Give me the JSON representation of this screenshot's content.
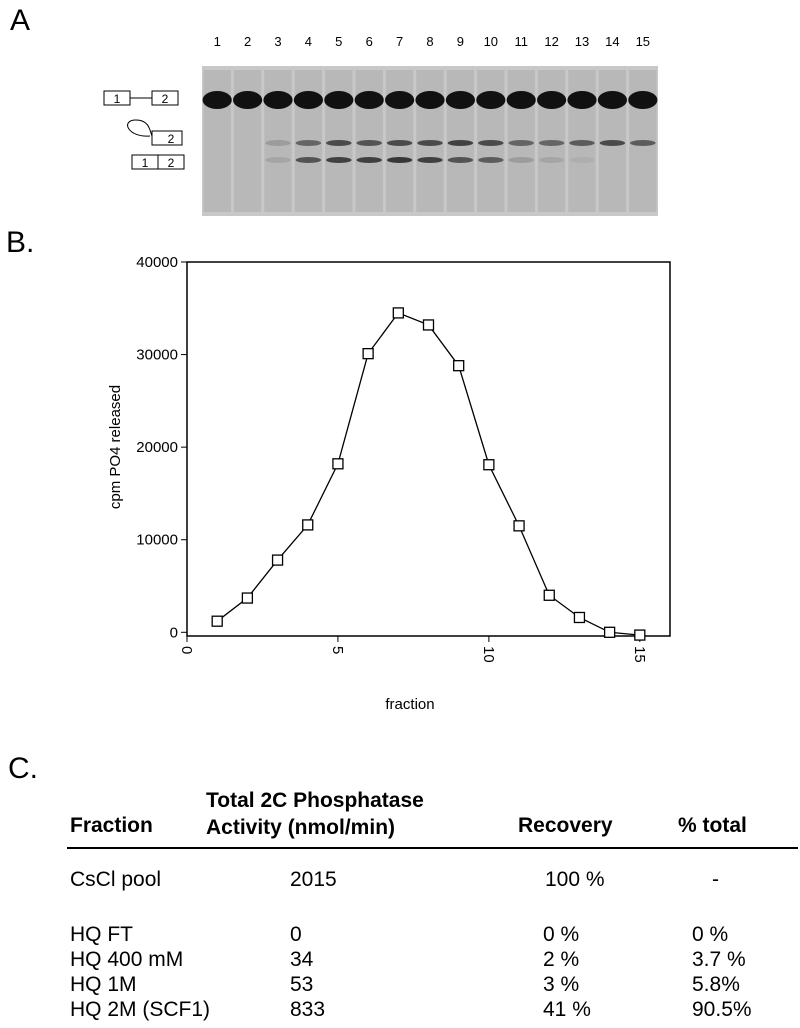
{
  "panel_labels": [
    "A",
    "B.",
    "C."
  ],
  "gel": {
    "lanes": [
      "1",
      "2",
      "3",
      "4",
      "5",
      "6",
      "7",
      "8",
      "9",
      "10",
      "11",
      "12",
      "13",
      "14",
      "15"
    ],
    "species": [
      [
        "1",
        "2"
      ],
      [
        "2"
      ],
      [
        "1",
        "2"
      ]
    ]
  },
  "chart_data": {
    "type": "line",
    "ylabel": "cpm PO4 released",
    "xlabel": "fraction",
    "x": [
      1,
      2,
      3,
      4,
      5,
      6,
      7,
      8,
      9,
      10,
      11,
      12,
      13,
      14,
      15
    ],
    "series": [
      {
        "color": "#000000",
        "values": [
          1200,
          3700,
          7800,
          11600,
          18200,
          30100,
          34500,
          33200,
          28800,
          18100,
          11500,
          4000,
          1600,
          0,
          -300
        ]
      }
    ],
    "xlim": [
      0,
      16
    ],
    "xticks": [
      0,
      5,
      10,
      15
    ],
    "ylim": [
      -400,
      40000
    ],
    "yticks": [
      0,
      10000,
      20000,
      30000,
      40000
    ],
    "grid": false
  },
  "table": {
    "header": [
      "Fraction",
      "Total 2C Phosphatase Activity (nmol/min)",
      "Recovery",
      "% total"
    ],
    "rows": [
      [
        "CsCl pool",
        "2015",
        "100 %",
        "-"
      ],
      [
        "HQ FT",
        "0",
        "0 %",
        "0 %"
      ],
      [
        "HQ 400 mM",
        "34",
        "2 %",
        "3.7 %"
      ],
      [
        "HQ 1M",
        "53",
        "3 %",
        "5.8%"
      ],
      [
        "HQ 2M (SCF1)",
        "833",
        "41 %",
        "90.5%"
      ]
    ]
  }
}
